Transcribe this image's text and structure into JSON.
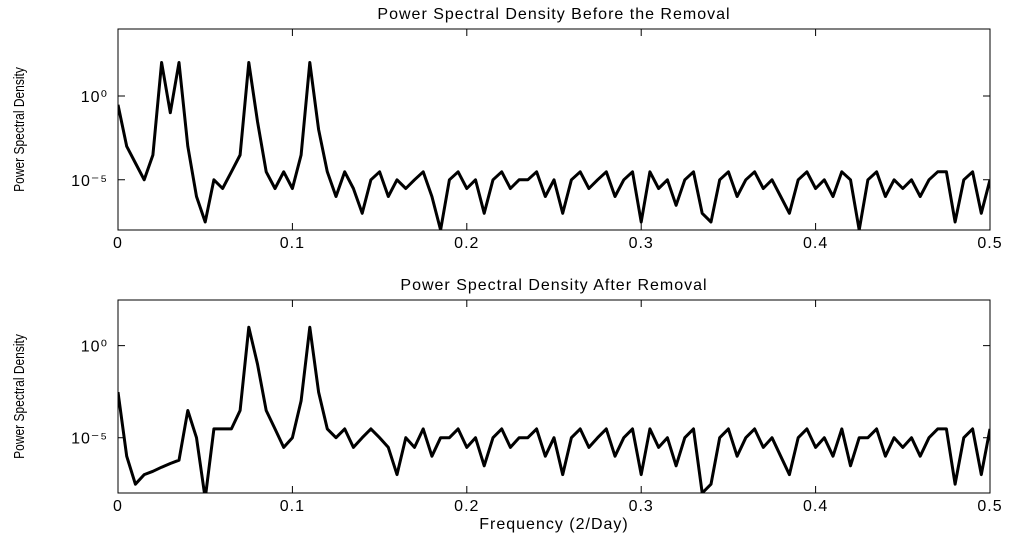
{
  "chart_data": [
    {
      "type": "line",
      "title": "Power Spectral Density Before the Removal",
      "y_label": "Power Spectral Density",
      "yscale": "log",
      "xlim": [
        0,
        0.5
      ],
      "xticks": [
        0,
        0.1,
        0.2,
        0.3,
        0.4,
        0.5
      ],
      "ylim": [
        1e-08,
        10000
      ],
      "yticks": [
        {
          "value": 1,
          "label": "10⁰"
        },
        {
          "value": 1e-05,
          "label": "10⁻⁵"
        }
      ],
      "x": [
        0,
        0.005,
        0.01,
        0.015,
        0.02,
        0.025,
        0.03,
        0.035,
        0.04,
        0.045,
        0.05,
        0.055,
        0.06,
        0.065,
        0.07,
        0.075,
        0.08,
        0.085,
        0.09,
        0.095,
        0.1,
        0.105,
        0.11,
        0.115,
        0.12,
        0.125,
        0.13,
        0.135,
        0.14,
        0.145,
        0.15,
        0.155,
        0.16,
        0.165,
        0.17,
        0.175,
        0.18,
        0.185,
        0.19,
        0.195,
        0.2,
        0.205,
        0.21,
        0.215,
        0.22,
        0.225,
        0.23,
        0.235,
        0.24,
        0.245,
        0.25,
        0.255,
        0.26,
        0.265,
        0.27,
        0.275,
        0.28,
        0.285,
        0.29,
        0.295,
        0.3,
        0.305,
        0.31,
        0.315,
        0.32,
        0.325,
        0.33,
        0.335,
        0.34,
        0.345,
        0.35,
        0.355,
        0.36,
        0.365,
        0.37,
        0.375,
        0.38,
        0.385,
        0.39,
        0.395,
        0.4,
        0.405,
        0.41,
        0.415,
        0.42,
        0.425,
        0.43,
        0.435,
        0.44,
        0.445,
        0.45,
        0.455,
        0.46,
        0.465,
        0.47,
        0.475,
        0.48,
        0.485,
        0.49,
        0.495,
        0.5
      ],
      "series": [
        {
          "color": "#000000",
          "values": [
            0.3,
            0.001,
            0.0001,
            1e-05,
            0.0003,
            100,
            0.1,
            100,
            0.001,
            1e-06,
            3e-08,
            1e-05,
            3e-06,
            3e-05,
            0.0003,
            100,
            0.03,
            3e-05,
            3e-06,
            3e-05,
            3e-06,
            0.0003,
            100,
            0.01,
            3e-05,
            1e-06,
            3e-05,
            3e-06,
            1e-07,
            1e-05,
            3e-05,
            1e-06,
            1e-05,
            3e-06,
            1e-05,
            3e-05,
            1e-06,
            1e-08,
            1e-05,
            3e-05,
            3e-06,
            1e-05,
            1e-07,
            1e-05,
            3e-05,
            3e-06,
            1e-05,
            1e-05,
            3e-05,
            1e-06,
            1e-05,
            1e-07,
            1e-05,
            3e-05,
            3e-06,
            1e-05,
            3e-05,
            1e-06,
            1e-05,
            3e-05,
            3e-08,
            3e-05,
            3e-06,
            1e-05,
            3e-07,
            1e-05,
            3e-05,
            1e-07,
            3e-08,
            1e-05,
            3e-05,
            1e-06,
            1e-05,
            3e-05,
            3e-06,
            1e-05,
            1e-06,
            1e-07,
            1e-05,
            3e-05,
            3e-06,
            1e-05,
            1e-06,
            3e-05,
            1e-05,
            1e-08,
            1e-05,
            3e-05,
            1e-06,
            1e-05,
            3e-06,
            1e-05,
            1e-06,
            1e-05,
            3e-05,
            3e-05,
            3e-08,
            1e-05,
            3e-05,
            1e-07,
            1e-05
          ]
        }
      ]
    },
    {
      "type": "line",
      "title": "Power Spectral Density After Removal",
      "y_label": "Power Spectral Density",
      "x_label": "Frequency (2/Day)",
      "yscale": "log",
      "xlim": [
        0,
        0.5
      ],
      "xticks": [
        0,
        0.1,
        0.2,
        0.3,
        0.4,
        0.5
      ],
      "ylim": [
        1e-08,
        300
      ],
      "yticks": [
        {
          "value": 1,
          "label": "10⁰"
        },
        {
          "value": 1e-05,
          "label": "10⁻⁵"
        }
      ],
      "x": [
        0,
        0.005,
        0.01,
        0.015,
        0.02,
        0.025,
        0.03,
        0.035,
        0.04,
        0.045,
        0.05,
        0.055,
        0.06,
        0.065,
        0.07,
        0.075,
        0.08,
        0.085,
        0.09,
        0.095,
        0.1,
        0.105,
        0.11,
        0.115,
        0.12,
        0.125,
        0.13,
        0.135,
        0.14,
        0.145,
        0.15,
        0.155,
        0.16,
        0.165,
        0.17,
        0.175,
        0.18,
        0.185,
        0.19,
        0.195,
        0.2,
        0.205,
        0.21,
        0.215,
        0.22,
        0.225,
        0.23,
        0.235,
        0.24,
        0.245,
        0.25,
        0.255,
        0.26,
        0.265,
        0.27,
        0.275,
        0.28,
        0.285,
        0.29,
        0.295,
        0.3,
        0.305,
        0.31,
        0.315,
        0.32,
        0.325,
        0.33,
        0.335,
        0.34,
        0.345,
        0.35,
        0.355,
        0.36,
        0.365,
        0.37,
        0.375,
        0.38,
        0.385,
        0.39,
        0.395,
        0.4,
        0.405,
        0.41,
        0.415,
        0.42,
        0.425,
        0.43,
        0.435,
        0.44,
        0.445,
        0.45,
        0.455,
        0.46,
        0.465,
        0.47,
        0.475,
        0.48,
        0.485,
        0.49,
        0.495,
        0.5
      ],
      "series": [
        {
          "color": "#000000",
          "values": [
            0.003,
            1e-06,
            3e-08,
            1e-07,
            1.5e-07,
            2.5e-07,
            4e-07,
            6e-07,
            0.0003,
            1e-05,
            5e-09,
            3e-05,
            3e-05,
            3e-05,
            0.0003,
            10,
            0.1,
            0.0003,
            3e-05,
            3e-06,
            1e-05,
            0.001,
            10,
            0.003,
            3e-05,
            1e-05,
            3e-05,
            3e-06,
            1e-05,
            3e-05,
            1e-05,
            3e-06,
            1e-07,
            1e-05,
            3e-06,
            3e-05,
            1e-06,
            1e-05,
            1e-05,
            3e-05,
            3e-06,
            1e-05,
            3e-07,
            1e-05,
            3e-05,
            3e-06,
            1e-05,
            1e-05,
            3e-05,
            1e-06,
            1e-05,
            1e-07,
            1e-05,
            3e-05,
            3e-06,
            1e-05,
            3e-05,
            1e-06,
            1e-05,
            3e-05,
            1e-07,
            3e-05,
            3e-06,
            1e-05,
            3e-07,
            1e-05,
            3e-05,
            1e-08,
            3e-08,
            1e-05,
            3e-05,
            1e-06,
            1e-05,
            3e-05,
            3e-06,
            1e-05,
            1e-06,
            1e-07,
            1e-05,
            3e-05,
            3e-06,
            1e-05,
            1e-06,
            3e-05,
            3e-07,
            1e-05,
            1e-05,
            3e-05,
            1e-06,
            1e-05,
            3e-06,
            1e-05,
            1e-06,
            1e-05,
            3e-05,
            3e-05,
            3e-08,
            1e-05,
            3e-05,
            1e-07,
            3e-05
          ]
        }
      ]
    }
  ]
}
